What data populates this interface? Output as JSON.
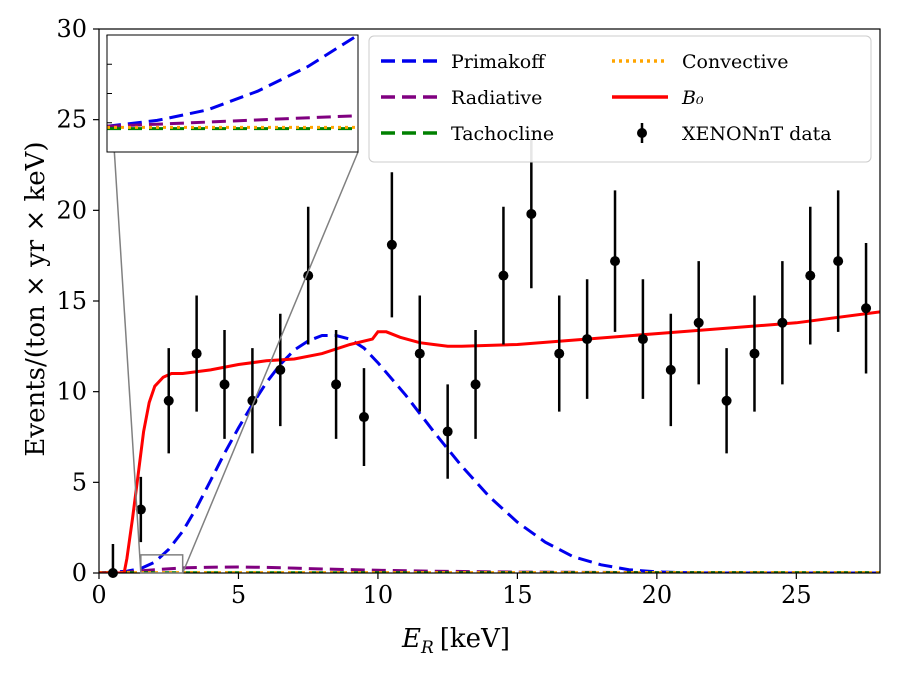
{
  "chart_data": [
    {
      "type": "line",
      "xlabel_main": "E",
      "xlabel_sub": "R",
      "xlabel_unit": "[keV]",
      "ylabel": "Events/(ton × yr × keV)",
      "xlim": [
        0,
        28
      ],
      "ylim": [
        0,
        30
      ],
      "xticks": [
        "0",
        "5",
        "10",
        "15",
        "20",
        "25"
      ],
      "yticks": [
        "0",
        "5",
        "10",
        "15",
        "20",
        "25",
        "30"
      ],
      "legend_position": "top-right",
      "series": [
        {
          "name": "Primakoff",
          "style": "dashed",
          "color": "#0000ee",
          "x": [
            0,
            1,
            1.5,
            2,
            2.5,
            3,
            3.5,
            4,
            4.5,
            5,
            5.5,
            6,
            6.5,
            7,
            7.5,
            8,
            8.5,
            9,
            9.5,
            10,
            11,
            12,
            13,
            14,
            15,
            16,
            17,
            18,
            19,
            20,
            21,
            22,
            28
          ],
          "y": [
            0,
            0.1,
            0.25,
            0.6,
            1.3,
            2.3,
            3.6,
            5.1,
            6.6,
            8.0,
            9.3,
            10.5,
            11.5,
            12.3,
            12.8,
            13.1,
            13.1,
            12.9,
            12.4,
            11.6,
            9.8,
            7.8,
            5.9,
            4.2,
            2.8,
            1.7,
            0.9,
            0.45,
            0.18,
            0.06,
            0.02,
            0.0,
            0.0
          ]
        },
        {
          "name": "Radiative",
          "style": "dashed",
          "color": "#800080",
          "x": [
            0,
            1,
            2,
            3,
            4,
            5,
            6,
            7,
            8,
            10,
            12,
            15,
            20,
            28
          ],
          "y": [
            0,
            0.05,
            0.18,
            0.28,
            0.32,
            0.33,
            0.31,
            0.27,
            0.22,
            0.15,
            0.1,
            0.05,
            0.02,
            0.01
          ]
        },
        {
          "name": "Tachocline",
          "style": "dashed",
          "color": "#008000",
          "x": [
            0,
            28
          ],
          "y": [
            0.01,
            0.01
          ]
        },
        {
          "name": "Convective",
          "style": "dotted",
          "color": "#ffa500",
          "x": [
            0,
            28
          ],
          "y": [
            0.02,
            0.02
          ]
        },
        {
          "name": "B₀",
          "style": "solid",
          "color": "#ff0000",
          "x": [
            0,
            0.9,
            1.0,
            1.2,
            1.4,
            1.6,
            1.8,
            2.0,
            2.3,
            2.6,
            3.0,
            4.0,
            5.0,
            6.0,
            7.0,
            8.0,
            9.0,
            9.8,
            10.0,
            10.3,
            10.8,
            11.5,
            12.0,
            12.5,
            13.0,
            15.0,
            20.0,
            25.0,
            28.0
          ],
          "y": [
            0,
            0,
            0.8,
            3.0,
            5.4,
            7.8,
            9.4,
            10.3,
            10.8,
            11.0,
            11.0,
            11.2,
            11.5,
            11.7,
            11.8,
            12.1,
            12.6,
            12.9,
            13.3,
            13.3,
            13.0,
            12.7,
            12.6,
            12.5,
            12.5,
            12.6,
            13.2,
            13.8,
            14.4
          ]
        }
      ],
      "data_series": {
        "name": "XENONnT data",
        "color": "#000000",
        "x": [
          0.5,
          1.5,
          2.5,
          3.5,
          4.5,
          5.5,
          6.5,
          7.5,
          8.5,
          9.5,
          10.5,
          11.5,
          12.5,
          13.5,
          14.5,
          15.5,
          16.5,
          17.5,
          18.5,
          19.5,
          20.5,
          21.5,
          22.5,
          23.5,
          24.5,
          25.5,
          26.5,
          27.5
        ],
        "y": [
          0.0,
          3.5,
          9.5,
          12.1,
          10.4,
          9.5,
          11.2,
          16.4,
          10.4,
          8.6,
          18.1,
          12.1,
          7.8,
          10.4,
          16.4,
          19.8,
          12.1,
          12.9,
          17.2,
          12.9,
          11.2,
          13.8,
          9.5,
          12.1,
          13.8,
          16.4,
          17.2,
          14.6
        ],
        "yerr": [
          1.6,
          1.8,
          2.9,
          3.2,
          3.0,
          2.9,
          3.1,
          3.8,
          3.0,
          2.7,
          4.0,
          3.2,
          2.6,
          3.0,
          3.8,
          4.1,
          3.2,
          3.3,
          3.9,
          3.3,
          3.1,
          3.4,
          2.9,
          3.2,
          3.4,
          3.8,
          3.9,
          3.6
        ]
      }
    },
    {
      "type": "line",
      "role": "inset",
      "xlim": [
        1.5,
        3.0
      ],
      "ylim": [
        0,
        1
      ],
      "series_ref": [
        "Primakoff",
        "Radiative",
        "Tachocline",
        "Convective"
      ],
      "inset_series": [
        {
          "name": "Primakoff",
          "x": [
            1.5,
            1.8,
            2.1,
            2.4,
            2.7,
            3.0
          ],
          "y": [
            0.22,
            0.27,
            0.36,
            0.52,
            0.73,
            1.0
          ]
        },
        {
          "name": "Radiative",
          "x": [
            1.5,
            2.0,
            2.5,
            3.0
          ],
          "y": [
            0.22,
            0.25,
            0.28,
            0.31
          ]
        },
        {
          "name": "Tachocline",
          "x": [
            1.5,
            3.0
          ],
          "y": [
            0.2,
            0.2
          ]
        },
        {
          "name": "Convective",
          "x": [
            1.5,
            3.0
          ],
          "y": [
            0.21,
            0.21
          ]
        }
      ]
    }
  ]
}
